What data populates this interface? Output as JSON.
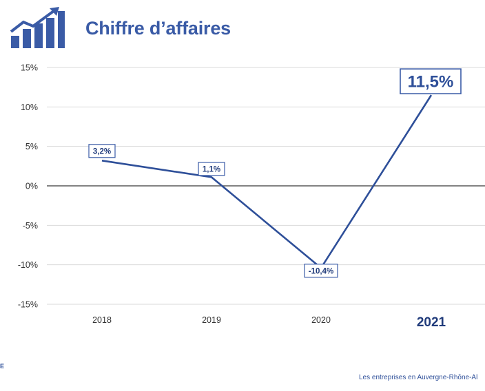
{
  "header": {
    "title": "Chiffre d’affaires",
    "logo_icon": "growth-chart-icon"
  },
  "chart_data": {
    "type": "line",
    "title": "Chiffre d’affaires",
    "categories": [
      "2018",
      "2019",
      "2020",
      "2021"
    ],
    "values": [
      3.2,
      1.1,
      -10.4,
      11.5
    ],
    "labels": [
      "3,2%",
      "1,1%",
      "-10,4%",
      "11,5%"
    ],
    "highlight_category": "2021",
    "y_ticks": [
      "15%",
      "10%",
      "5%",
      "0%",
      "-5%",
      "-10%",
      "-15%"
    ],
    "y_tick_values": [
      15,
      10,
      5,
      0,
      -5,
      -10,
      -15
    ],
    "ylim": [
      -15,
      15
    ],
    "grid": true,
    "colors": {
      "line": "#2e4f99",
      "label_text": "#1f3a7a",
      "grid": "#d9d9d9",
      "zero_line": "#595959"
    }
  },
  "footer": {
    "left": "E",
    "right": "Les entreprises en Auvergne-Rhône-Al"
  }
}
